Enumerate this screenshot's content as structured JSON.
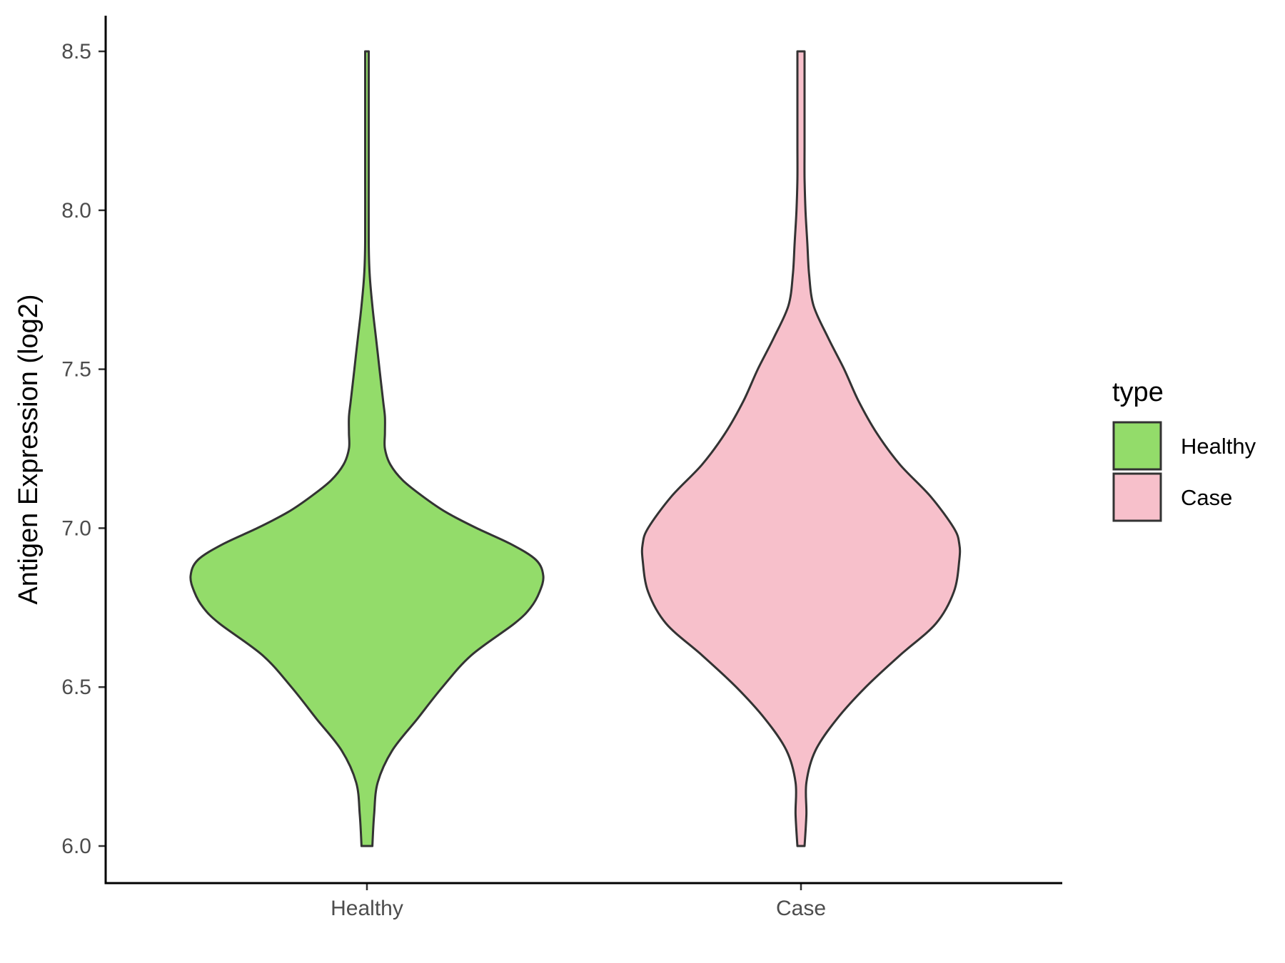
{
  "chart_data": {
    "type": "violin",
    "title": "",
    "xlabel": "",
    "ylabel": "Antigen Expression (log2)",
    "ylim": [
      5.88,
      8.61
    ],
    "yticks": [
      "6.0",
      "6.5",
      "7.0",
      "7.5",
      "8.0",
      "8.5"
    ],
    "categories": [
      "Healthy",
      "Case"
    ],
    "legend": {
      "title": "type",
      "position": "right",
      "entries": [
        "Healthy",
        "Case"
      ]
    },
    "series": [
      {
        "name": "Healthy",
        "color": "#93dc6a",
        "density_profile": [
          [
            6.0,
            0.03
          ],
          [
            6.1,
            0.04
          ],
          [
            6.2,
            0.06
          ],
          [
            6.3,
            0.14
          ],
          [
            6.4,
            0.28
          ],
          [
            6.5,
            0.42
          ],
          [
            6.6,
            0.58
          ],
          [
            6.7,
            0.82
          ],
          [
            6.75,
            0.91
          ],
          [
            6.8,
            0.96
          ],
          [
            6.85,
            0.98
          ],
          [
            6.9,
            0.94
          ],
          [
            6.95,
            0.8
          ],
          [
            7.0,
            0.61
          ],
          [
            7.05,
            0.44
          ],
          [
            7.1,
            0.31
          ],
          [
            7.15,
            0.2
          ],
          [
            7.2,
            0.13
          ],
          [
            7.25,
            0.1
          ],
          [
            7.3,
            0.1
          ],
          [
            7.35,
            0.1
          ],
          [
            7.4,
            0.09
          ],
          [
            7.5,
            0.07
          ],
          [
            7.6,
            0.05
          ],
          [
            7.7,
            0.03
          ],
          [
            7.8,
            0.015
          ],
          [
            7.9,
            0.01
          ],
          [
            8.1,
            0.01
          ],
          [
            8.3,
            0.01
          ],
          [
            8.5,
            0.01
          ]
        ]
      },
      {
        "name": "Case",
        "color": "#f7c0cb",
        "density_profile": [
          [
            6.0,
            0.02
          ],
          [
            6.1,
            0.03
          ],
          [
            6.2,
            0.03
          ],
          [
            6.3,
            0.08
          ],
          [
            6.4,
            0.2
          ],
          [
            6.5,
            0.36
          ],
          [
            6.6,
            0.55
          ],
          [
            6.7,
            0.75
          ],
          [
            6.8,
            0.85
          ],
          [
            6.9,
            0.88
          ],
          [
            6.95,
            0.88
          ],
          [
            7.0,
            0.85
          ],
          [
            7.1,
            0.72
          ],
          [
            7.2,
            0.55
          ],
          [
            7.3,
            0.42
          ],
          [
            7.4,
            0.32
          ],
          [
            7.5,
            0.24
          ],
          [
            7.6,
            0.15
          ],
          [
            7.7,
            0.07
          ],
          [
            7.8,
            0.045
          ],
          [
            7.9,
            0.035
          ],
          [
            8.0,
            0.025
          ],
          [
            8.1,
            0.02
          ],
          [
            8.2,
            0.02
          ],
          [
            8.3,
            0.02
          ],
          [
            8.4,
            0.02
          ],
          [
            8.5,
            0.02
          ]
        ]
      }
    ]
  }
}
